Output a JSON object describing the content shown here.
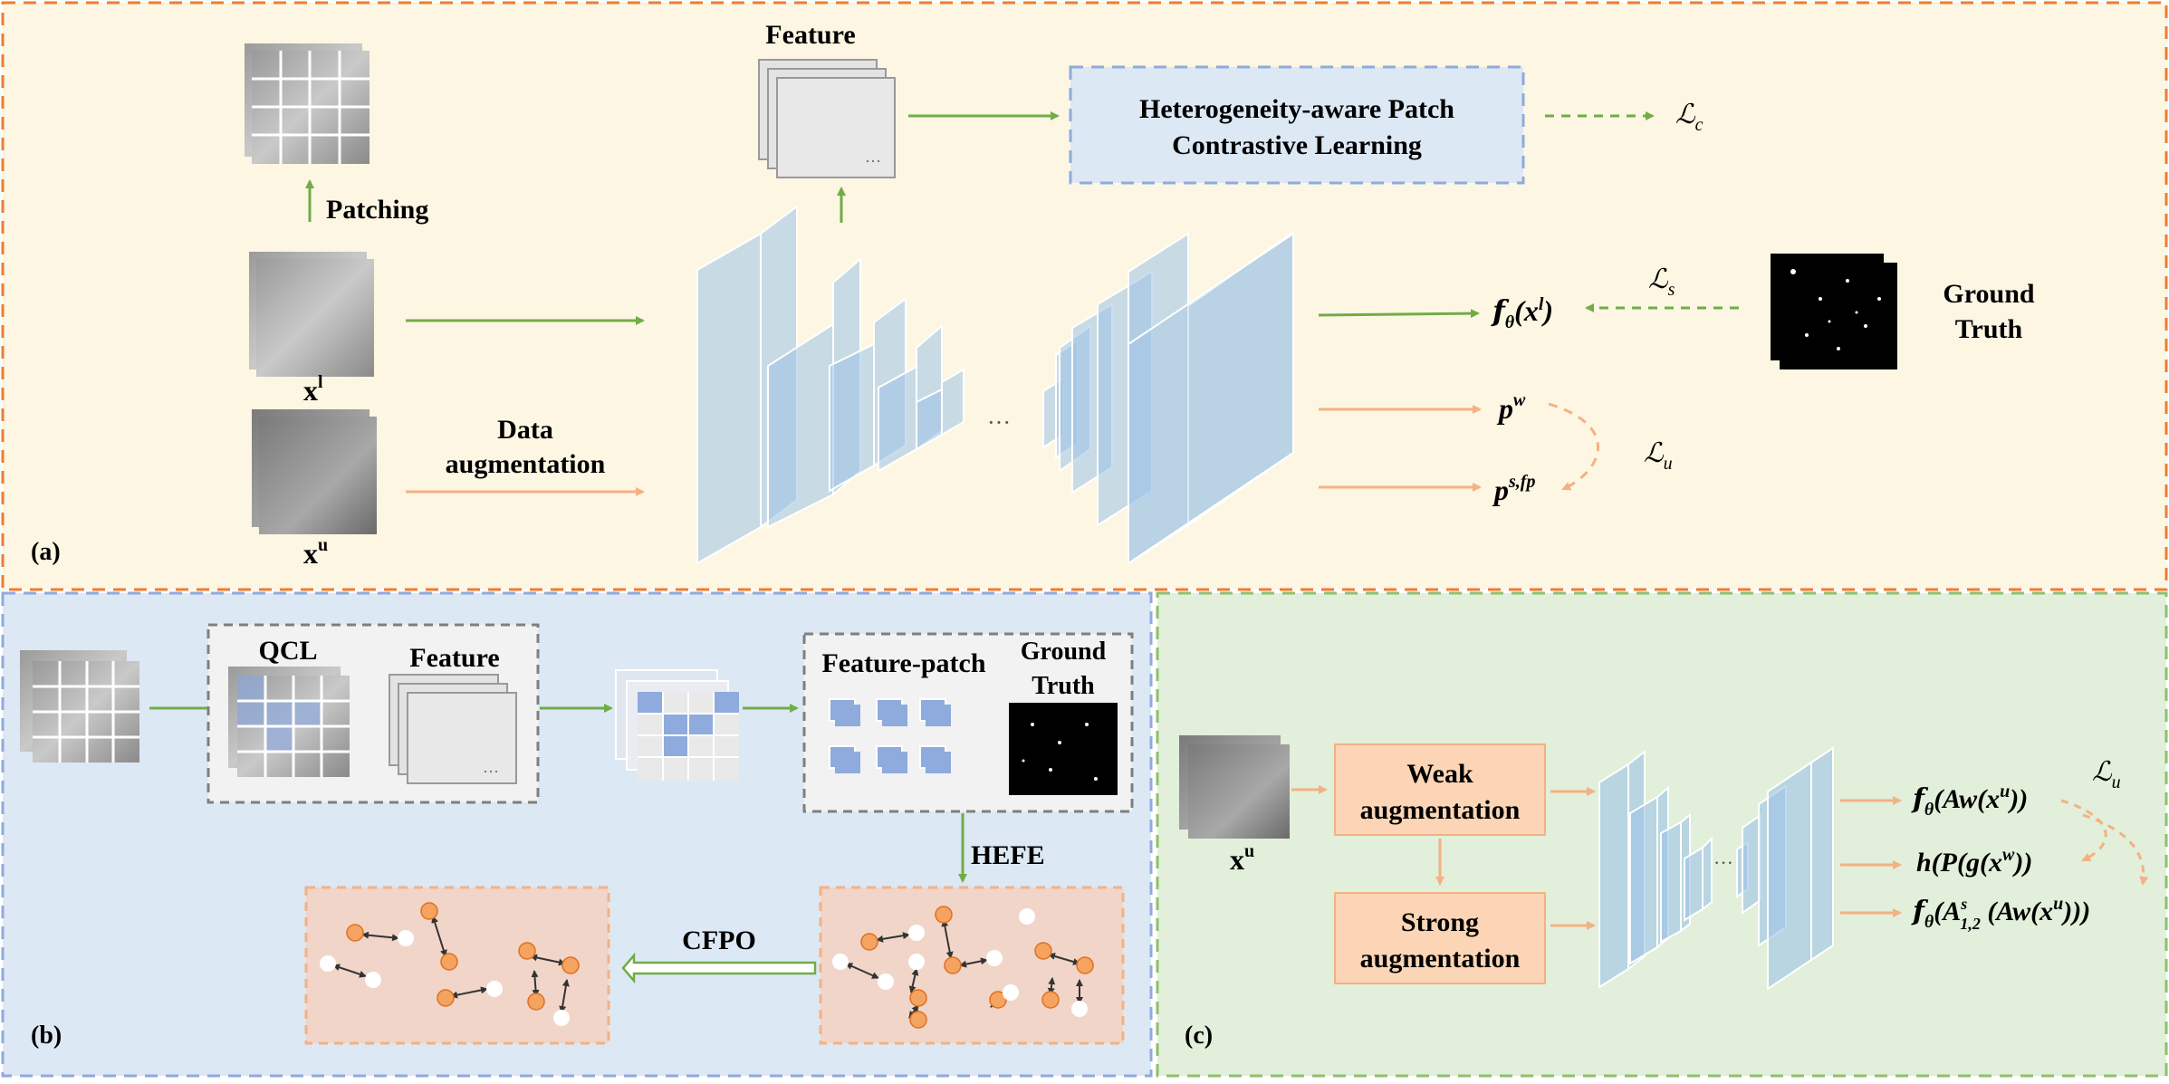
{
  "panel_a": {
    "label": "(a)",
    "patching": "Patching",
    "feature": "Feature",
    "hpcl_line1": "Heterogeneity-aware Patch",
    "hpcl_line2": "Contrastive Learning",
    "xl": "x",
    "xl_sup": "l",
    "xu": "x",
    "xu_sup": "u",
    "data_aug_line1": "Data",
    "data_aug_line2": "augmentation",
    "dots": "···",
    "loss_c": "ℒ",
    "loss_c_sub": "c",
    "loss_s": "ℒ",
    "loss_s_sub": "s",
    "loss_u": "ℒ",
    "loss_u_sub": "u",
    "f_theta_xl": "𝒇",
    "ground_truth_line1": "Ground",
    "ground_truth_line2": "Truth",
    "pw": "p",
    "pw_sup": "w",
    "psfp": "p",
    "psfp_sup": "s,fp"
  },
  "panel_b": {
    "label": "(b)",
    "qcl": "QCL",
    "feature": "Feature",
    "feature_patch": "Feature-patch",
    "ground_truth_line1": "Ground",
    "ground_truth_line2": "Truth",
    "hefe": "HEFE",
    "cfpo": "CFPO",
    "dots": "···"
  },
  "panel_c": {
    "label": "(c)",
    "xu": "x",
    "xu_sup": "u",
    "weak_line1": "Weak",
    "weak_line2": "augmentation",
    "strong_line1": "Strong",
    "strong_line2": "augmentation",
    "out1": "fθ(Aw(xu))",
    "out2": "h(P(g(xw))",
    "out3": "fθ(As1,2 (Aw(xu)))",
    "loss_u": "ℒ",
    "loss_u_sub": "u",
    "dots": "···"
  },
  "colors": {
    "panel_a_bg": "#fdf6e3",
    "panel_a_border": "#ed7d31",
    "panel_b_bg": "#dde8f5",
    "panel_b_border": "#8faadc",
    "panel_c_bg": "#e2efda",
    "panel_c_border": "#8fbf6c",
    "green_arrow": "#70ad47",
    "orange_arrow": "#f4b183",
    "blue_block": "#9dc3e6",
    "node_orange": "#f4a460"
  }
}
